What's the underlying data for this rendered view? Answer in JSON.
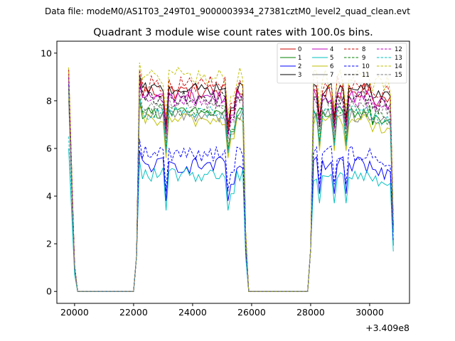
{
  "suptitle": "Data file: modeM0/AS1T03_249T01_9000003934_27381cztM0_level2_quad_clean.evt",
  "chart_data": {
    "type": "line",
    "title": "Quadrant 3 module wise count rates with 100.0s bins.",
    "xlabel": "",
    "ylabel": "",
    "x_offset_label": "+3.409e8",
    "xlim": [
      19400,
      31350
    ],
    "ylim": [
      -0.5,
      10.5
    ],
    "x_ticks": [
      20000,
      22000,
      24000,
      26000,
      28000,
      30000
    ],
    "x_tick_labels": [
      "20000",
      "22000",
      "24000",
      "26000",
      "28000",
      "30000"
    ],
    "y_ticks": [
      0,
      2,
      4,
      6,
      8,
      10
    ],
    "y_tick_labels": [
      "0",
      "2",
      "4",
      "6",
      "8",
      "10"
    ],
    "grid": false,
    "legend": {
      "position": "top-right",
      "columns": 4
    },
    "segments": [
      {
        "start": 19800,
        "end": 19800,
        "edge": "start"
      },
      {
        "start": 20100,
        "end": 22000,
        "edge": "none"
      },
      {
        "start": 22100,
        "end": 25800,
        "edge": "both"
      },
      {
        "start": 25900,
        "end": 27900,
        "edge": "none"
      },
      {
        "start": 28000,
        "end": 30800,
        "edge": "both"
      }
    ],
    "series": [
      {
        "name": "0",
        "color": "#cc0000",
        "dash": "solid",
        "peak": 9.3,
        "base": 8.4,
        "edge": 8.0,
        "dip": 6.8,
        "noise": 0.35
      },
      {
        "name": "1",
        "color": "#008000",
        "dash": "solid",
        "peak": 8.4,
        "base": 7.5,
        "edge": 7.3,
        "dip": 5.9,
        "noise": 0.25
      },
      {
        "name": "2",
        "color": "#0000ff",
        "dash": "solid",
        "peak": 8.7,
        "base": 5.3,
        "edge": 5.5,
        "dip": 3.8,
        "noise": 0.35
      },
      {
        "name": "3",
        "color": "#000000",
        "dash": "solid",
        "peak": 9.0,
        "base": 8.5,
        "edge": 8.1,
        "dip": 7.0,
        "noise": 0.25
      },
      {
        "name": "4",
        "color": "#bf00bf",
        "dash": "solid",
        "peak": 9.1,
        "base": 8.2,
        "edge": 7.8,
        "dip": 6.6,
        "noise": 0.3
      },
      {
        "name": "5",
        "color": "#00bfbf",
        "dash": "solid",
        "peak": 6.0,
        "base": 4.9,
        "edge": 4.8,
        "dip": 3.4,
        "noise": 0.3
      },
      {
        "name": "6",
        "color": "#bfbf00",
        "dash": "solid",
        "peak": 8.1,
        "base": 7.2,
        "edge": 7.0,
        "dip": 5.6,
        "noise": 0.3
      },
      {
        "name": "7",
        "color": "#808080",
        "dash": "solid",
        "peak": 8.0,
        "base": 7.4,
        "edge": 7.1,
        "dip": 5.8,
        "noise": 0.3
      },
      {
        "name": "8",
        "color": "#cc0000",
        "dash": "dashed",
        "peak": 9.3,
        "base": 8.7,
        "edge": 8.3,
        "dip": 7.0,
        "noise": 0.35
      },
      {
        "name": "9",
        "color": "#008000",
        "dash": "dashed",
        "peak": 8.5,
        "base": 7.6,
        "edge": 7.4,
        "dip": 6.0,
        "noise": 0.3
      },
      {
        "name": "10",
        "color": "#0000ff",
        "dash": "dashed",
        "peak": 8.7,
        "base": 5.8,
        "edge": 6.0,
        "dip": 4.2,
        "noise": 0.35
      },
      {
        "name": "11",
        "color": "#000000",
        "dash": "dashed",
        "peak": 9.0,
        "base": 8.1,
        "edge": 7.8,
        "dip": 6.6,
        "noise": 0.3
      },
      {
        "name": "12",
        "color": "#bf00bf",
        "dash": "dashed",
        "peak": 9.0,
        "base": 8.0,
        "edge": 7.6,
        "dip": 6.5,
        "noise": 0.3
      },
      {
        "name": "13",
        "color": "#00bfbf",
        "dash": "dashed",
        "peak": 6.5,
        "base": 7.5,
        "edge": 7.2,
        "dip": 5.8,
        "noise": 0.3
      },
      {
        "name": "14",
        "color": "#bfbf00",
        "dash": "dashed",
        "peak": 9.4,
        "base": 9.0,
        "edge": 8.5,
        "dip": 7.4,
        "noise": 0.4
      },
      {
        "name": "15",
        "color": "#808080",
        "dash": "dashed",
        "peak": 8.6,
        "base": 7.9,
        "edge": 7.5,
        "dip": 6.3,
        "noise": 0.3
      }
    ]
  }
}
